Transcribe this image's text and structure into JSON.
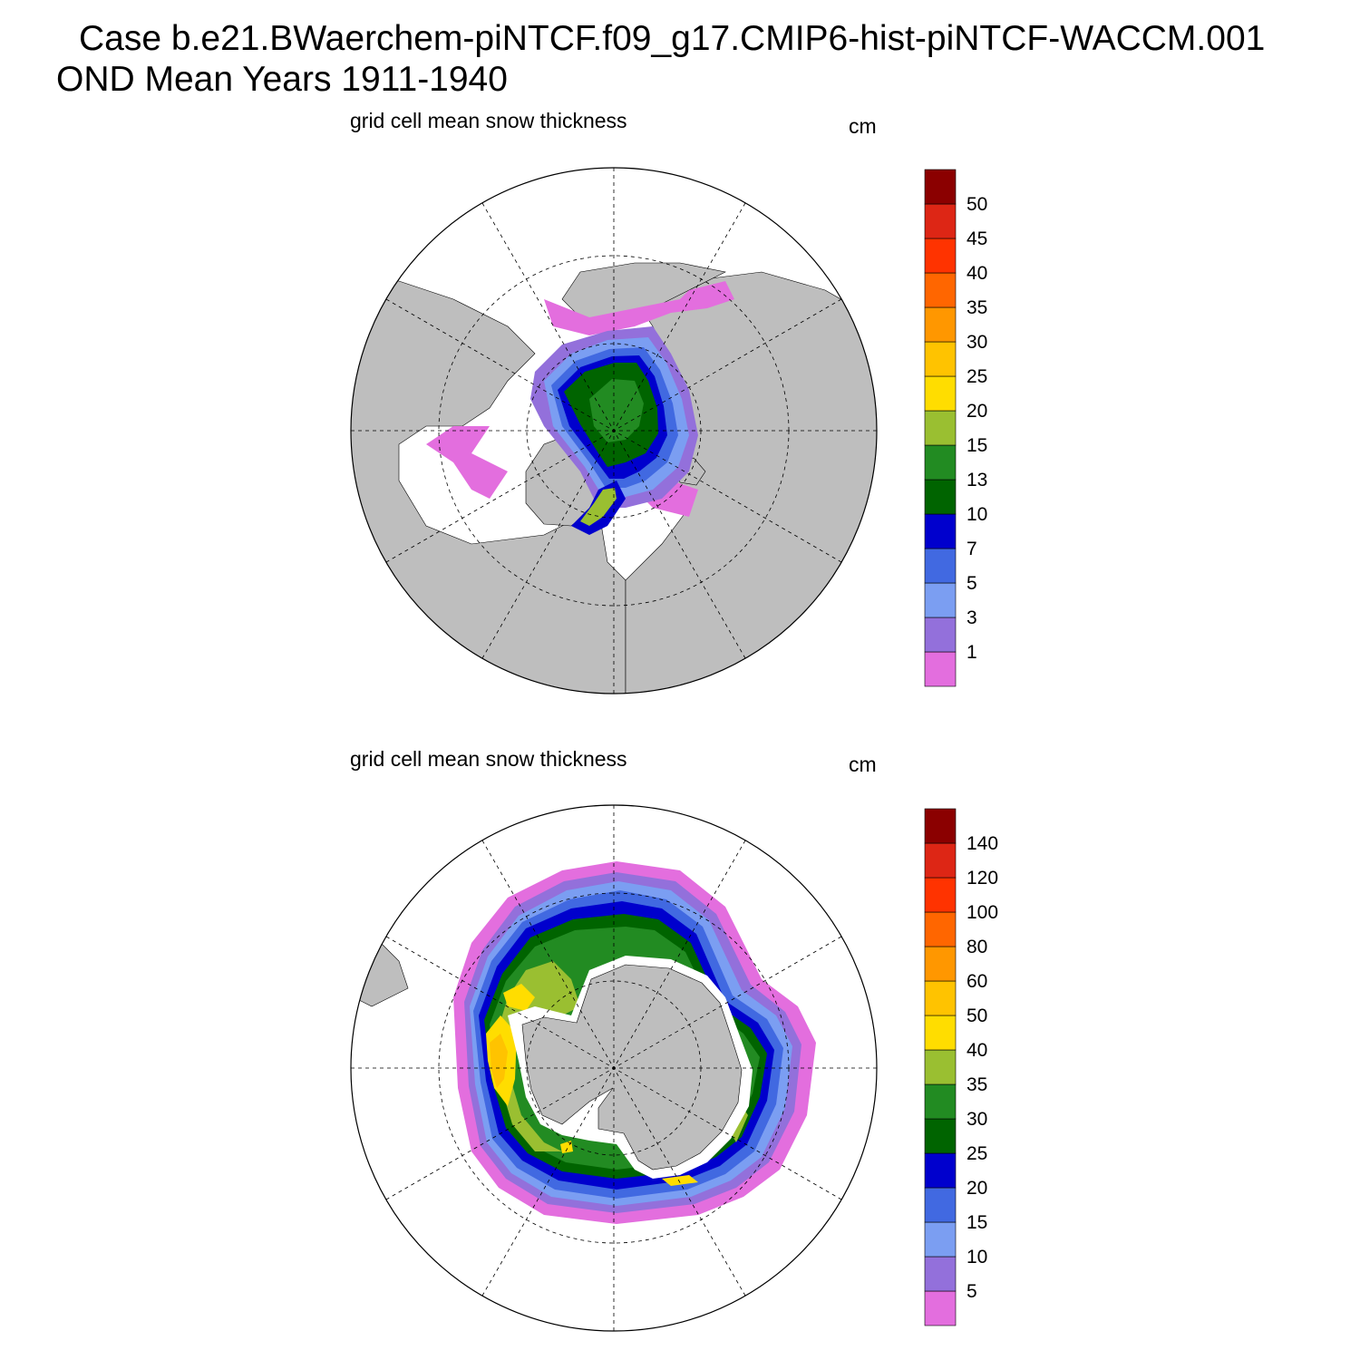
{
  "title": {
    "line1": "Case b.e21.BWaerchem-piNTCF.f09_g17.CMIP6-hist-piNTCF-WACCM.001",
    "line2": "OND Mean   Years 1911-1940"
  },
  "colors": {
    "land": "#bebebe",
    "ocean": "#ffffff",
    "levels": [
      "#e36ede",
      "#9370db",
      "#7b9ef2",
      "#4169e1",
      "#0000cd",
      "#006400",
      "#228b22",
      "#9abf31",
      "#ffdd00",
      "#ffc300",
      "#ff9700",
      "#ff6600",
      "#ff3300",
      "#dd2615",
      "#8b0000"
    ]
  },
  "panels": [
    {
      "id": "arctic",
      "hemisphere": "north",
      "variable": "grid cell mean snow thickness",
      "units": "cm",
      "colorbar_labels": [
        "1",
        "3",
        "5",
        "7",
        "10",
        "13",
        "15",
        "20",
        "25",
        "30",
        "35",
        "40",
        "45",
        "50"
      ]
    },
    {
      "id": "antarctic",
      "hemisphere": "south",
      "variable": "grid cell mean snow thickness",
      "units": "cm",
      "colorbar_labels": [
        "5",
        "10",
        "15",
        "20",
        "25",
        "30",
        "35",
        "40",
        "50",
        "60",
        "80",
        "100",
        "120",
        "140"
      ]
    }
  ]
}
